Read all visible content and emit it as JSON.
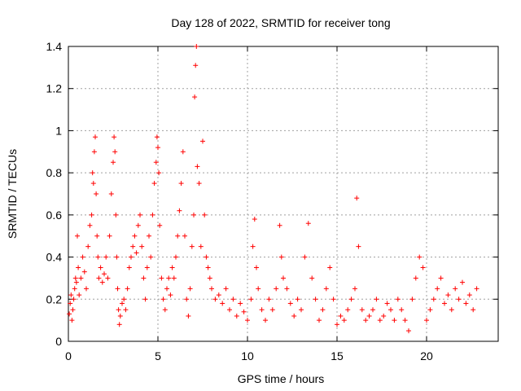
{
  "chart_data": {
    "type": "scatter",
    "title": "Day 128 of 2022, SRMTID for receiver tong",
    "xlabel": "GPS time / hours",
    "ylabel": "SRMTID / TECUs",
    "xlim": [
      0,
      24
    ],
    "ylim": [
      0,
      1.4
    ],
    "x_ticks": [
      "0",
      "5",
      "10",
      "15",
      "20"
    ],
    "x_tick_values": [
      0,
      5,
      10,
      15,
      20
    ],
    "y_ticks": [
      "0",
      "0.2",
      "0.4",
      "0.6",
      "0.8",
      "1",
      "1.2",
      "1.4"
    ],
    "y_tick_values": [
      0,
      0.2,
      0.4,
      0.6,
      0.8,
      1.0,
      1.2,
      1.4
    ],
    "grid": true,
    "marker": "+",
    "series_color": "#ff0000",
    "series": [
      {
        "name": "SRMTID",
        "points": [
          [
            0.05,
            0.13
          ],
          [
            0.1,
            0.18
          ],
          [
            0.15,
            0.22
          ],
          [
            0.2,
            0.1
          ],
          [
            0.25,
            0.15
          ],
          [
            0.3,
            0.2
          ],
          [
            0.35,
            0.25
          ],
          [
            0.4,
            0.3
          ],
          [
            0.45,
            0.28
          ],
          [
            0.5,
            0.5
          ],
          [
            0.55,
            0.35
          ],
          [
            0.6,
            0.22
          ],
          [
            0.7,
            0.3
          ],
          [
            0.8,
            0.4
          ],
          [
            0.9,
            0.33
          ],
          [
            1.0,
            0.25
          ],
          [
            1.1,
            0.45
          ],
          [
            1.2,
            0.55
          ],
          [
            1.3,
            0.6
          ],
          [
            1.35,
            0.8
          ],
          [
            1.4,
            0.75
          ],
          [
            1.45,
            0.9
          ],
          [
            1.5,
            0.97
          ],
          [
            1.55,
            0.7
          ],
          [
            1.6,
            0.5
          ],
          [
            1.65,
            0.4
          ],
          [
            1.7,
            0.3
          ],
          [
            1.8,
            0.35
          ],
          [
            1.9,
            0.28
          ],
          [
            2.0,
            0.32
          ],
          [
            2.1,
            0.4
          ],
          [
            2.2,
            0.3
          ],
          [
            2.3,
            0.5
          ],
          [
            2.4,
            0.7
          ],
          [
            2.5,
            0.85
          ],
          [
            2.55,
            0.97
          ],
          [
            2.6,
            0.9
          ],
          [
            2.65,
            0.6
          ],
          [
            2.7,
            0.4
          ],
          [
            2.75,
            0.25
          ],
          [
            2.8,
            0.15
          ],
          [
            2.85,
            0.08
          ],
          [
            2.9,
            0.12
          ],
          [
            3.0,
            0.18
          ],
          [
            3.1,
            0.2
          ],
          [
            3.2,
            0.15
          ],
          [
            3.3,
            0.25
          ],
          [
            3.4,
            0.35
          ],
          [
            3.5,
            0.4
          ],
          [
            3.6,
            0.45
          ],
          [
            3.7,
            0.5
          ],
          [
            3.8,
            0.42
          ],
          [
            3.9,
            0.55
          ],
          [
            4.0,
            0.6
          ],
          [
            4.1,
            0.45
          ],
          [
            4.2,
            0.3
          ],
          [
            4.3,
            0.2
          ],
          [
            4.4,
            0.35
          ],
          [
            4.5,
            0.5
          ],
          [
            4.6,
            0.4
          ],
          [
            4.7,
            0.6
          ],
          [
            4.8,
            0.75
          ],
          [
            4.9,
            0.85
          ],
          [
            4.95,
            0.97
          ],
          [
            5.0,
            0.92
          ],
          [
            5.05,
            0.8
          ],
          [
            5.1,
            0.55
          ],
          [
            5.2,
            0.3
          ],
          [
            5.3,
            0.2
          ],
          [
            5.4,
            0.15
          ],
          [
            5.5,
            0.25
          ],
          [
            5.6,
            0.3
          ],
          [
            5.7,
            0.22
          ],
          [
            5.8,
            0.35
          ],
          [
            5.9,
            0.3
          ],
          [
            6.0,
            0.4
          ],
          [
            6.1,
            0.5
          ],
          [
            6.2,
            0.62
          ],
          [
            6.3,
            0.75
          ],
          [
            6.4,
            0.9
          ],
          [
            6.5,
            0.5
          ],
          [
            6.6,
            0.2
          ],
          [
            6.7,
            0.12
          ],
          [
            6.8,
            0.25
          ],
          [
            6.9,
            0.45
          ],
          [
            7.0,
            0.6
          ],
          [
            7.05,
            1.16
          ],
          [
            7.1,
            1.31
          ],
          [
            7.15,
            1.4
          ],
          [
            7.2,
            0.83
          ],
          [
            7.3,
            0.75
          ],
          [
            7.4,
            0.45
          ],
          [
            7.5,
            0.95
          ],
          [
            7.6,
            0.6
          ],
          [
            7.7,
            0.4
          ],
          [
            7.8,
            0.35
          ],
          [
            7.9,
            0.3
          ],
          [
            8.0,
            0.25
          ],
          [
            8.2,
            0.2
          ],
          [
            8.4,
            0.22
          ],
          [
            8.6,
            0.18
          ],
          [
            8.8,
            0.25
          ],
          [
            9.0,
            0.15
          ],
          [
            9.2,
            0.2
          ],
          [
            9.4,
            0.12
          ],
          [
            9.6,
            0.18
          ],
          [
            9.8,
            0.14
          ],
          [
            10.0,
            0.1
          ],
          [
            10.2,
            0.2
          ],
          [
            10.3,
            0.45
          ],
          [
            10.4,
            0.58
          ],
          [
            10.5,
            0.35
          ],
          [
            10.6,
            0.25
          ],
          [
            10.8,
            0.15
          ],
          [
            11.0,
            0.1
          ],
          [
            11.2,
            0.2
          ],
          [
            11.4,
            0.15
          ],
          [
            11.6,
            0.25
          ],
          [
            11.8,
            0.55
          ],
          [
            11.9,
            0.4
          ],
          [
            12.0,
            0.3
          ],
          [
            12.2,
            0.25
          ],
          [
            12.4,
            0.18
          ],
          [
            12.6,
            0.12
          ],
          [
            12.8,
            0.2
          ],
          [
            13.0,
            0.15
          ],
          [
            13.2,
            0.4
          ],
          [
            13.4,
            0.56
          ],
          [
            13.6,
            0.3
          ],
          [
            13.8,
            0.2
          ],
          [
            14.0,
            0.1
          ],
          [
            14.2,
            0.15
          ],
          [
            14.4,
            0.25
          ],
          [
            14.6,
            0.35
          ],
          [
            14.8,
            0.2
          ],
          [
            15.0,
            0.08
          ],
          [
            15.2,
            0.12
          ],
          [
            15.4,
            0.1
          ],
          [
            15.6,
            0.15
          ],
          [
            15.8,
            0.2
          ],
          [
            16.0,
            0.25
          ],
          [
            16.1,
            0.68
          ],
          [
            16.2,
            0.45
          ],
          [
            16.4,
            0.15
          ],
          [
            16.6,
            0.1
          ],
          [
            16.8,
            0.12
          ],
          [
            17.0,
            0.15
          ],
          [
            17.2,
            0.2
          ],
          [
            17.4,
            0.1
          ],
          [
            17.6,
            0.12
          ],
          [
            17.8,
            0.18
          ],
          [
            18.0,
            0.15
          ],
          [
            18.2,
            0.1
          ],
          [
            18.4,
            0.2
          ],
          [
            18.6,
            0.15
          ],
          [
            18.8,
            0.1
          ],
          [
            19.0,
            0.05
          ],
          [
            19.2,
            0.2
          ],
          [
            19.4,
            0.3
          ],
          [
            19.6,
            0.4
          ],
          [
            19.8,
            0.35
          ],
          [
            20.0,
            0.1
          ],
          [
            20.2,
            0.15
          ],
          [
            20.4,
            0.2
          ],
          [
            20.6,
            0.25
          ],
          [
            20.8,
            0.3
          ],
          [
            21.0,
            0.18
          ],
          [
            21.2,
            0.22
          ],
          [
            21.4,
            0.15
          ],
          [
            21.6,
            0.25
          ],
          [
            21.8,
            0.2
          ],
          [
            22.0,
            0.28
          ],
          [
            22.2,
            0.18
          ],
          [
            22.4,
            0.22
          ],
          [
            22.6,
            0.15
          ],
          [
            22.8,
            0.25
          ]
        ]
      }
    ]
  }
}
